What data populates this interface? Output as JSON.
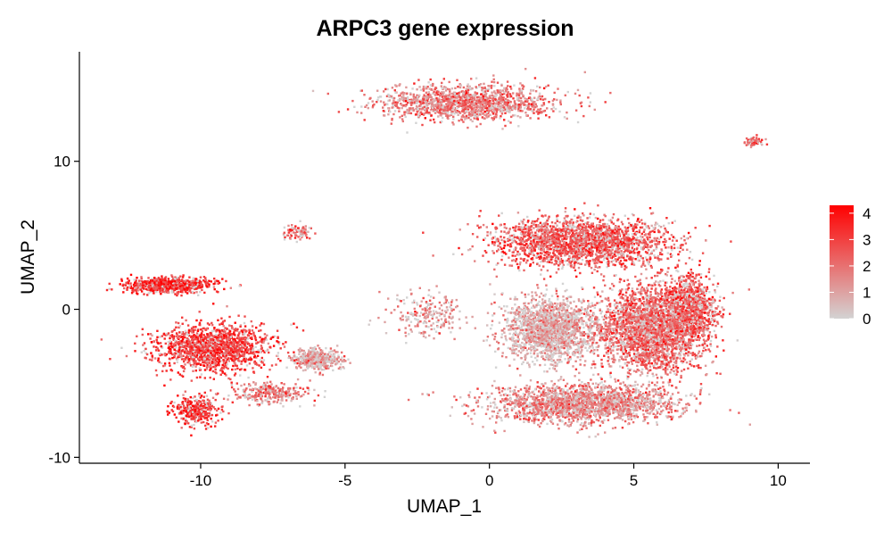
{
  "chart_data": {
    "type": "scatter",
    "title": "ARPC3 gene expression",
    "xlabel": "UMAP_1",
    "ylabel": "UMAP_2",
    "xlim": [
      -14.2,
      11.1
    ],
    "ylim": [
      -10.4,
      17.4
    ],
    "x_ticks": [
      -10,
      -5,
      0,
      5,
      10
    ],
    "y_ticks": [
      -10,
      0,
      10
    ],
    "grid": false,
    "legend": {
      "position": "right",
      "kind": "continuous-colorbar",
      "range": [
        0,
        4.3
      ],
      "ticks": [
        0,
        1,
        2,
        3,
        4
      ],
      "low_color": "#d3d3d3",
      "high_color": "#ff0000"
    },
    "clusters": [
      {
        "center": [
          -0.9,
          14.0
        ],
        "spread": [
          3.1,
          1.2
        ],
        "mean_expression": 1.9,
        "count": 1400
      },
      {
        "center": [
          -11.2,
          1.7
        ],
        "spread": [
          1.5,
          0.55
        ],
        "mean_expression": 3.3,
        "count": 700
      },
      {
        "center": [
          -9.6,
          -2.5
        ],
        "spread": [
          2.0,
          1.6
        ],
        "mean_expression": 3.1,
        "count": 1500
      },
      {
        "center": [
          -10.2,
          -6.8
        ],
        "spread": [
          0.7,
          1.0
        ],
        "mean_expression": 3.2,
        "count": 350
      },
      {
        "center": [
          -6.0,
          -3.3
        ],
        "spread": [
          0.8,
          0.7
        ],
        "mean_expression": 1.0,
        "count": 450
      },
      {
        "center": [
          -7.6,
          -5.6
        ],
        "spread": [
          1.4,
          0.7
        ],
        "mean_expression": 1.8,
        "count": 300
      },
      {
        "center": [
          3.2,
          4.6
        ],
        "spread": [
          3.0,
          1.6
        ],
        "mean_expression": 2.5,
        "count": 2200
      },
      {
        "center": [
          2.1,
          -1.3
        ],
        "spread": [
          1.6,
          2.2
        ],
        "mean_expression": 0.9,
        "count": 1800
      },
      {
        "center": [
          5.6,
          -1.2
        ],
        "spread": [
          1.8,
          3.0
        ],
        "mean_expression": 2.2,
        "count": 2600
      },
      {
        "center": [
          3.2,
          -6.3
        ],
        "spread": [
          3.3,
          1.3
        ],
        "mean_expression": 1.6,
        "count": 2000
      },
      {
        "center": [
          7.0,
          0.2
        ],
        "spread": [
          0.9,
          2.3
        ],
        "mean_expression": 2.6,
        "count": 700
      },
      {
        "center": [
          -2.2,
          -0.3
        ],
        "spread": [
          1.3,
          1.6
        ],
        "mean_expression": 1.2,
        "count": 220
      },
      {
        "center": [
          -6.7,
          5.3
        ],
        "spread": [
          0.5,
          0.5
        ],
        "mean_expression": 2.2,
        "count": 90
      },
      {
        "center": [
          9.1,
          11.4
        ],
        "spread": [
          0.3,
          0.25
        ],
        "mean_expression": 2.3,
        "count": 100
      }
    ]
  }
}
